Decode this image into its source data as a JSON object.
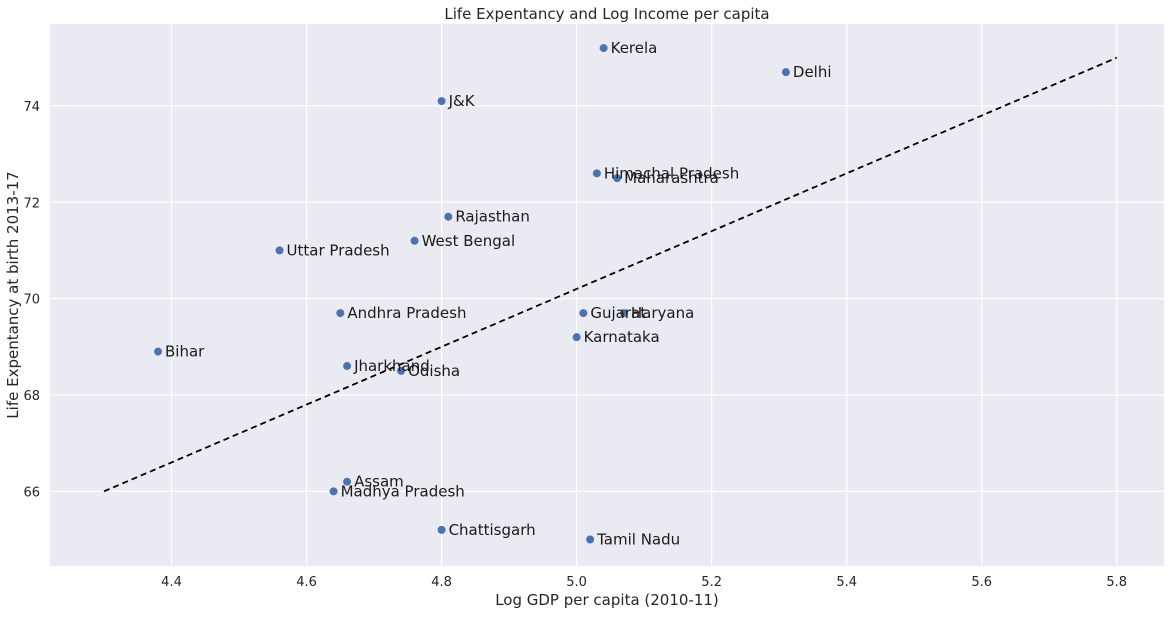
{
  "chart_data": {
    "type": "scatter",
    "title": "Life Expentancy and Log Income per capita",
    "xlabel": "Log GDP per capita (2010-11)",
    "ylabel": "Life Expentancy at birth 2013-17",
    "xlim": [
      4.22,
      5.87
    ],
    "ylim": [
      64.45,
      75.7
    ],
    "xticks": [
      4.4,
      4.6,
      4.8,
      5.0,
      5.2,
      5.4,
      5.6,
      5.8
    ],
    "xtick_labels": [
      "4.4",
      "4.6",
      "4.8",
      "5.0",
      "5.2",
      "5.4",
      "5.6",
      "5.8"
    ],
    "yticks": [
      66,
      68,
      70,
      72,
      74
    ],
    "ytick_labels": [
      "66",
      "68",
      "70",
      "72",
      "74"
    ],
    "grid": true,
    "legend": "none",
    "colors": {
      "background": "#eaeaf2",
      "grid": "#ffffff",
      "marker": "#4c72b0",
      "fit_line": "#000000"
    },
    "points": [
      {
        "label": "Kerela",
        "x": 5.04,
        "y": 75.2
      },
      {
        "label": "Delhi",
        "x": 5.31,
        "y": 74.7
      },
      {
        "label": "J&K",
        "x": 4.8,
        "y": 74.1
      },
      {
        "label": "Himachal Pradesh",
        "x": 5.03,
        "y": 72.6
      },
      {
        "label": "Maharashtra",
        "x": 5.06,
        "y": 72.5
      },
      {
        "label": "Rajasthan",
        "x": 4.81,
        "y": 71.7
      },
      {
        "label": "West Bengal",
        "x": 4.76,
        "y": 71.2
      },
      {
        "label": "Uttar Pradesh",
        "x": 4.56,
        "y": 71.0
      },
      {
        "label": "Andhra Pradesh",
        "x": 4.65,
        "y": 69.7
      },
      {
        "label": "Gujarat",
        "x": 5.01,
        "y": 69.7
      },
      {
        "label": "Haryana",
        "x": 5.07,
        "y": 69.7
      },
      {
        "label": "Karnataka",
        "x": 5.0,
        "y": 69.2
      },
      {
        "label": "Bihar",
        "x": 4.38,
        "y": 68.9
      },
      {
        "label": "Jharkhand",
        "x": 4.66,
        "y": 68.6
      },
      {
        "label": "Odisha",
        "x": 4.74,
        "y": 68.5
      },
      {
        "label": "Assam",
        "x": 4.66,
        "y": 66.2
      },
      {
        "label": "Madhya Pradesh",
        "x": 4.64,
        "y": 66.0
      },
      {
        "label": "Chattisgarh",
        "x": 4.8,
        "y": 65.2
      },
      {
        "label": "Tamil Nadu",
        "x": 5.02,
        "y": 65.0
      }
    ],
    "fit_line": {
      "style": "dashed",
      "x": [
        4.3,
        5.8
      ],
      "y": [
        66.0,
        75.0
      ]
    }
  }
}
